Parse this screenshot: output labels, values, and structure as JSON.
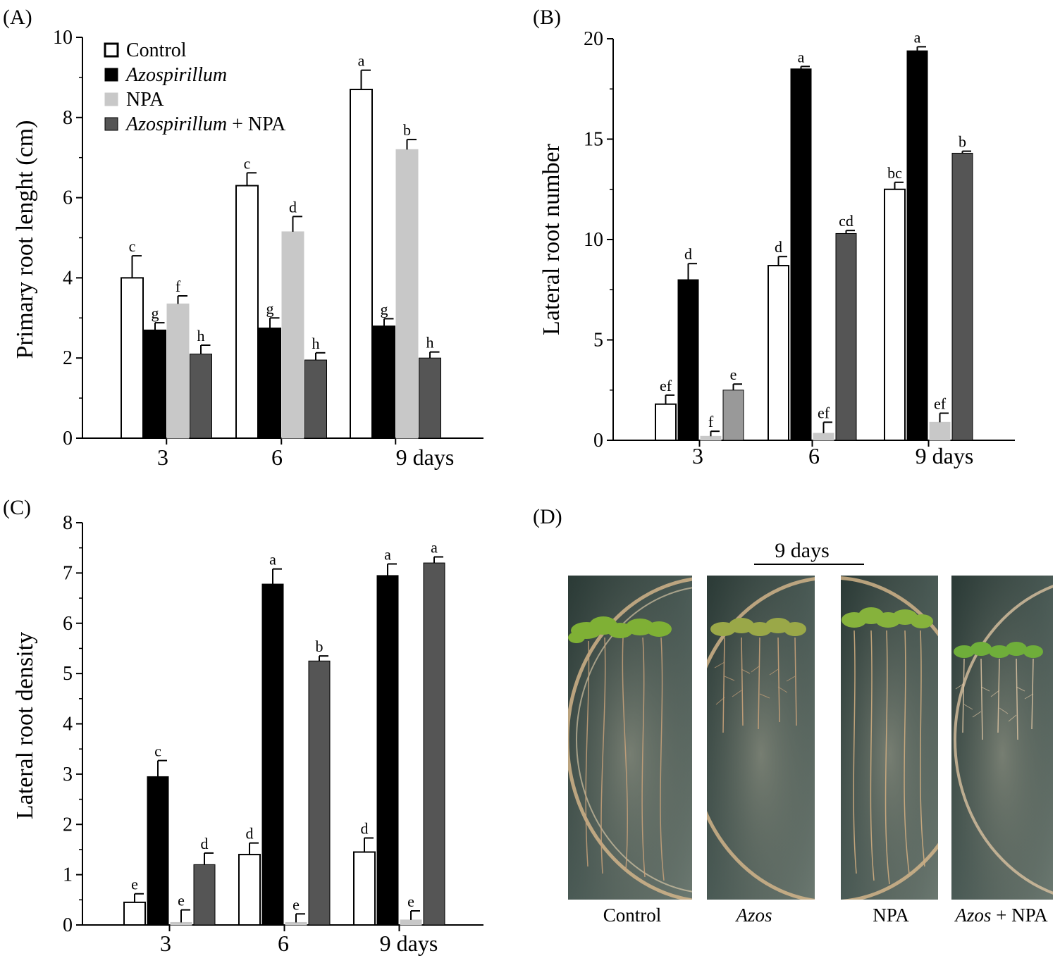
{
  "colors": {
    "control": "#ffffff",
    "azospirillum": "#000000",
    "npa": "#c8c8c8",
    "azos_npa": "#555555",
    "azos_npa_panelB_day3": "#999999"
  },
  "legend": [
    {
      "name": "Control",
      "italic": false
    },
    {
      "name": "Azospirillum",
      "italic": true
    },
    {
      "name": "NPA",
      "italic": false
    },
    {
      "name": "Azospirillum + NPA",
      "italic": true,
      "italic_part": "Azospirillum",
      "plain_part": " + NPA"
    }
  ],
  "chart_data": [
    {
      "panel": "(A)",
      "type": "bar",
      "ylabel": "Primary root lenght (cm)",
      "xlabel": "",
      "categories": [
        "3",
        "6",
        "9 days"
      ],
      "ylim": [
        0,
        10
      ],
      "yticks": [
        "0",
        "2",
        "4",
        "6",
        "8",
        "10"
      ],
      "series": [
        {
          "name": "Control",
          "values": [
            4.0,
            6.3,
            8.7
          ],
          "errors": [
            0.55,
            0.32,
            0.48
          ],
          "letters": [
            "c",
            "c",
            "a"
          ]
        },
        {
          "name": "Azospirillum",
          "values": [
            2.7,
            2.75,
            2.8
          ],
          "errors": [
            0.18,
            0.25,
            0.18
          ],
          "letters": [
            "g",
            "g",
            "g"
          ]
        },
        {
          "name": "NPA",
          "values": [
            3.35,
            5.15,
            7.2
          ],
          "errors": [
            0.2,
            0.38,
            0.25
          ],
          "letters": [
            "f",
            "d",
            "b"
          ]
        },
        {
          "name": "Azospirillum + NPA",
          "values": [
            2.1,
            1.95,
            2.0
          ],
          "errors": [
            0.22,
            0.18,
            0.15
          ],
          "letters": [
            "h",
            "h",
            "h"
          ]
        }
      ]
    },
    {
      "panel": "(B)",
      "type": "bar",
      "ylabel": "Lateral root number",
      "xlabel": "",
      "categories": [
        "3",
        "6",
        "9 days"
      ],
      "ylim": [
        0,
        20
      ],
      "yticks": [
        "0",
        "5",
        "10",
        "15",
        "20"
      ],
      "series": [
        {
          "name": "Control",
          "values": [
            1.8,
            8.7,
            12.5
          ],
          "errors": [
            0.45,
            0.45,
            0.35
          ],
          "letters": [
            "ef",
            "d",
            "bc"
          ]
        },
        {
          "name": "Azospirillum",
          "values": [
            8.0,
            18.5,
            19.4
          ],
          "errors": [
            0.8,
            0.12,
            0.2
          ],
          "letters": [
            "d",
            "a",
            "a"
          ]
        },
        {
          "name": "NPA",
          "values": [
            0.2,
            0.35,
            0.9
          ],
          "errors": [
            0.25,
            0.55,
            0.45
          ],
          "letters": [
            "f",
            "ef",
            "ef"
          ]
        },
        {
          "name": "Azospirillum + NPA",
          "values": [
            2.5,
            10.3,
            14.3
          ],
          "errors": [
            0.3,
            0.15,
            0.1
          ],
          "letters": [
            "e",
            "cd",
            "b"
          ]
        }
      ]
    },
    {
      "panel": "(C)",
      "type": "bar",
      "ylabel": "Lateral root density",
      "xlabel": "",
      "categories": [
        "3",
        "6",
        "9 days"
      ],
      "ylim": [
        0,
        8
      ],
      "yticks": [
        "0",
        "1",
        "2",
        "3",
        "4",
        "5",
        "6",
        "7",
        "8"
      ],
      "series": [
        {
          "name": "Control",
          "values": [
            0.45,
            1.4,
            1.45
          ],
          "errors": [
            0.17,
            0.23,
            0.28
          ],
          "letters": [
            "e",
            "d",
            "d"
          ]
        },
        {
          "name": "Azospirillum",
          "values": [
            2.95,
            6.78,
            6.95
          ],
          "errors": [
            0.32,
            0.3,
            0.23
          ],
          "letters": [
            "c",
            "a",
            "a"
          ]
        },
        {
          "name": "NPA",
          "values": [
            0.05,
            0.05,
            0.1
          ],
          "errors": [
            0.25,
            0.17,
            0.18
          ],
          "letters": [
            "e",
            "e",
            "e"
          ]
        },
        {
          "name": "Azospirillum + NPA",
          "values": [
            1.2,
            5.25,
            7.2
          ],
          "errors": [
            0.23,
            0.1,
            0.12
          ],
          "letters": [
            "d",
            "b",
            "a"
          ]
        }
      ]
    }
  ],
  "panel_d": {
    "panel": "(D)",
    "title": "9 days",
    "captions": [
      {
        "text": "Control",
        "italic_part": "",
        "plain_part": "Control"
      },
      {
        "text": "Azos",
        "italic_part": "Azos",
        "plain_part": ""
      },
      {
        "text": "NPA",
        "italic_part": "",
        "plain_part": "NPA"
      },
      {
        "text": "Azos + NPA",
        "italic_part": "Azos",
        "plain_part": " + NPA"
      }
    ]
  }
}
